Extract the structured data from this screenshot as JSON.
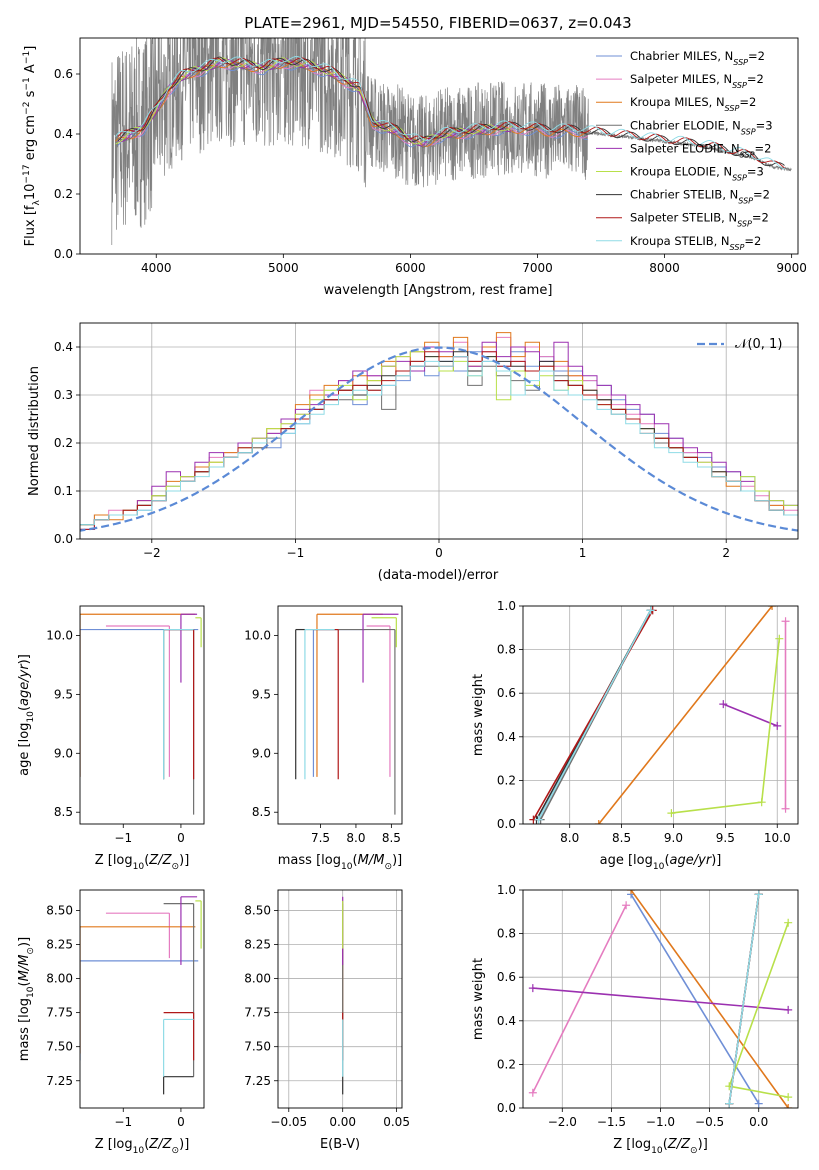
{
  "title": "PLATE=2961, MJD=54550, FIBERID=0637, z=0.043",
  "colors": {
    "Chabrier MILES": "#6f8fd6",
    "Salpeter MILES": "#e57cc0",
    "Kroupa MILES": "#e0781c",
    "Chabrier ELODIE": "#707070",
    "Salpeter ELODIE": "#9b30b0",
    "Kroupa ELODIE": "#b8e04a",
    "Chabrier STELIB": "#333333",
    "Salpeter STELIB": "#b01818",
    "Kroupa STELIB": "#8fdbe6",
    "data": "#808080",
    "normal": "#5b8ad6"
  },
  "chart_data": [
    {
      "type": "line",
      "name": "spectrum",
      "title": "PLATE=2961, MJD=54550, FIBERID=0637, z=0.043",
      "xlabel": "wavelength [Angstrom, rest frame]",
      "ylabel": "Flux [f_λ 10^-17 erg cm^-2 s^-1 A^-1]",
      "xlim": [
        3400,
        9050
      ],
      "ylim": [
        0,
        0.72
      ],
      "xticks": [
        4000,
        5000,
        6000,
        7000,
        8000,
        9000
      ],
      "yticks": [
        0.0,
        0.2,
        0.4,
        0.6
      ],
      "legend": "upper-right",
      "legend_entries": [
        {
          "model": "Chabrier MILES",
          "label": "Chabrier MILES, N",
          "sub": "SSP",
          "n": "=2"
        },
        {
          "model": "Salpeter MILES",
          "label": "Salpeter MILES, N",
          "sub": "SSP",
          "n": "=2"
        },
        {
          "model": "Kroupa MILES",
          "label": "Kroupa MILES, N",
          "sub": "SSP",
          "n": "=2"
        },
        {
          "model": "Chabrier ELODIE",
          "label": "Chabrier ELODIE, N",
          "sub": "SSP",
          "n": "=3"
        },
        {
          "model": "Salpeter ELODIE",
          "label": "Salpeter ELODIE, N",
          "sub": "SSP",
          "n": "=2"
        },
        {
          "model": "Kroupa ELODIE",
          "label": "Kroupa ELODIE, N",
          "sub": "SSP",
          "n": "=3"
        },
        {
          "model": "Chabrier STELIB",
          "label": "Chabrier STELIB, N",
          "sub": "SSP",
          "n": "=2"
        },
        {
          "model": "Salpeter STELIB",
          "label": "Salpeter STELIB, N",
          "sub": "SSP",
          "n": "=2"
        },
        {
          "model": "Kroupa STELIB",
          "label": "Kroupa STELIB, N",
          "sub": "SSP",
          "n": "=2"
        }
      ],
      "data_range": [
        3650,
        9000
      ],
      "continuum": [
        [
          3650,
          0.36
        ],
        [
          3700,
          0.38
        ],
        [
          3800,
          0.4
        ],
        [
          3900,
          0.42
        ],
        [
          4000,
          0.48
        ],
        [
          4100,
          0.55
        ],
        [
          4200,
          0.59
        ],
        [
          4300,
          0.61
        ],
        [
          4400,
          0.62
        ],
        [
          4500,
          0.64
        ],
        [
          4700,
          0.63
        ],
        [
          4850,
          0.62
        ],
        [
          5000,
          0.64
        ],
        [
          5200,
          0.63
        ],
        [
          5400,
          0.6
        ],
        [
          5600,
          0.55
        ],
        [
          5700,
          0.44
        ],
        [
          5800,
          0.42
        ],
        [
          5900,
          0.41
        ],
        [
          6000,
          0.38
        ],
        [
          6100,
          0.37
        ],
        [
          6200,
          0.39
        ],
        [
          6300,
          0.4
        ],
        [
          6500,
          0.41
        ],
        [
          6700,
          0.42
        ],
        [
          6900,
          0.42
        ],
        [
          7100,
          0.41
        ],
        [
          7300,
          0.41
        ],
        [
          7500,
          0.4
        ],
        [
          7700,
          0.39
        ],
        [
          7900,
          0.38
        ],
        [
          8100,
          0.37
        ],
        [
          8300,
          0.36
        ],
        [
          8500,
          0.34
        ],
        [
          8700,
          0.32
        ],
        [
          8850,
          0.29
        ],
        [
          9000,
          0.28
        ]
      ],
      "model_ends": {
        "Chabrier MILES": 7400,
        "Salpeter MILES": 7400,
        "Kroupa MILES": 7400,
        "Chabrier ELODIE": 6800,
        "Salpeter ELODIE": 6800,
        "Kroupa ELODIE": 6800,
        "Chabrier STELIB": 8950,
        "Salpeter STELIB": 8950,
        "Kroupa STELIB": 8950
      }
    },
    {
      "type": "histogram",
      "name": "residuals",
      "xlabel": "(data-model)/error",
      "ylabel": "Normed distribution",
      "xlim": [
        -2.5,
        2.5
      ],
      "ylim": [
        0,
        0.45
      ],
      "xticks": [
        -2,
        -1,
        0,
        1,
        2
      ],
      "yticks": [
        0.0,
        0.1,
        0.2,
        0.3,
        0.4
      ],
      "legend": "upper-right",
      "legend_label": "𝒩(0, 1)",
      "bin_width": 0.1,
      "grid": true
    },
    {
      "type": "errorbar",
      "name": "age-vs-Z",
      "xlabel": "Z [log10(Z/Z⊙)]",
      "ylabel": "age [log10(age/yr)]",
      "xlim": [
        -1.75,
        0.4
      ],
      "ylim": [
        8.4,
        10.25
      ],
      "xticks": [
        -1,
        0
      ],
      "yticks": [
        8.5,
        9.0,
        9.5,
        10.0
      ]
    },
    {
      "type": "errorbar",
      "name": "age-vs-mass",
      "xlabel": "mass [log10(M/M⊙)]",
      "ylabel": "",
      "xlim": [
        6.9,
        8.65
      ],
      "ylim": [
        8.4,
        10.25
      ],
      "xticks": [
        7.5,
        8.0,
        8.5
      ],
      "yticks": [
        8.5,
        9.0,
        9.5,
        10.0
      ]
    },
    {
      "type": "line",
      "name": "mass-weight-vs-age",
      "xlabel": "age [log10(age/yr)]",
      "ylabel": "mass weight",
      "xlim": [
        7.55,
        10.2
      ],
      "ylim": [
        0,
        1
      ],
      "xticks": [
        8.0,
        8.5,
        9.0,
        9.5,
        10.0
      ],
      "yticks": [
        0.0,
        0.2,
        0.4,
        0.6,
        0.8,
        1.0
      ],
      "grid": true
    },
    {
      "type": "errorbar",
      "name": "mass-vs-Z",
      "xlabel": "Z [log10(Z/Z⊙)]",
      "ylabel": "mass [log10(M/M⊙)]",
      "xlim": [
        -1.75,
        0.4
      ],
      "ylim": [
        7.05,
        8.65
      ],
      "xticks": [
        -1,
        0
      ],
      "yticks": [
        7.25,
        7.5,
        7.75,
        8.0,
        8.25,
        8.5
      ]
    },
    {
      "type": "errorbar",
      "name": "mass-vs-EBV",
      "xlabel": "E(B-V)",
      "ylabel": "",
      "xlim": [
        -0.06,
        0.055
      ],
      "ylim": [
        7.05,
        8.65
      ],
      "xticks": [
        -0.05,
        0.0,
        0.05
      ],
      "yticks": [
        7.25,
        7.5,
        7.75,
        8.0,
        8.25,
        8.5
      ],
      "grid": true
    },
    {
      "type": "line",
      "name": "mass-weight-vs-Z",
      "xlabel": "Z [log10(Z/Z⊙)]",
      "ylabel": "mass weight",
      "xlim": [
        -2.4,
        0.4
      ],
      "ylim": [
        0,
        1
      ],
      "xticks": [
        -2.0,
        -1.5,
        -1.0,
        -0.5,
        0.0
      ],
      "yticks": [
        0.0,
        0.2,
        0.4,
        0.6,
        0.8,
        1.0
      ],
      "grid": true
    }
  ],
  "ssp": {
    "Chabrier MILES": {
      "age": [
        7.7,
        8.78
      ],
      "Z": [
        0.0,
        -1.3
      ],
      "mass": [
        7.25,
        8.1
      ],
      "weight": [
        0.02,
        0.98
      ],
      "age_err": [
        8.8,
        10.05
      ],
      "Z_err": [
        -1.75,
        0.3
      ],
      "mass_err": [
        7.4,
        8.13
      ]
    },
    "Salpeter MILES": {
      "age": [
        10.08,
        10.08
      ],
      "Z": [
        -2.3,
        -1.35
      ],
      "mass": [
        7.3,
        8.48
      ],
      "weight": [
        0.07,
        0.93
      ],
      "age_err": [
        8.8,
        10.08
      ],
      "Z_err": [
        -1.3,
        -0.2
      ],
      "mass_err": [
        8.15,
        8.48
      ]
    },
    "Kroupa MILES": {
      "age": [
        8.28,
        9.95
      ],
      "Z": [
        0.3,
        -1.3
      ],
      "mass": [
        7.45,
        8.38
      ],
      "weight": [
        0.0,
        1.0
      ],
      "age_err": [
        8.8,
        10.18
      ],
      "Z_err": [
        -1.75,
        0.25
      ],
      "mass_err": [
        7.45,
        8.38
      ]
    },
    "Chabrier ELODIE": {
      "age": [
        7.72,
        8.78
      ],
      "Z": [
        -0.3,
        0.0
      ],
      "mass": [
        7.28,
        8.55
      ],
      "weight": [
        0.02,
        0.98
      ],
      "age_err": [
        8.48,
        10.05
      ],
      "Z_err": [
        -0.3,
        0.22
      ],
      "mass_err": [
        7.28,
        8.55
      ]
    },
    "Salpeter ELODIE": {
      "age": [
        9.48,
        10.0
      ],
      "Z": [
        -2.3,
        0.3
      ],
      "mass": [
        7.3,
        8.25
      ],
      "weight": [
        0.55,
        0.45
      ],
      "age_err": [
        9.6,
        10.18
      ],
      "Z_err": [
        0.0,
        0.28
      ],
      "mass_err": [
        8.1,
        8.6
      ]
    },
    "Kroupa ELODIE": {
      "age": [
        8.98,
        9.85,
        10.02
      ],
      "Z": [
        0.3,
        -0.3,
        0.3
      ],
      "mass": [
        7.4,
        7.7,
        8.5
      ],
      "weight": [
        0.05,
        0.1,
        0.85
      ],
      "age_err": [
        9.9,
        10.15
      ],
      "Z_err": [
        0.25,
        0.35
      ],
      "mass_err": [
        8.22,
        8.57
      ]
    },
    "Chabrier STELIB": {
      "age": [
        7.68,
        8.78
      ],
      "Z": [
        -0.3,
        0.0
      ],
      "mass": [
        7.15,
        8.5
      ],
      "weight": [
        0.02,
        0.98
      ],
      "age_err": [
        8.78,
        10.05
      ],
      "Z_err": [
        -0.3,
        0.22
      ],
      "mass_err": [
        7.15,
        7.28
      ]
    },
    "Salpeter STELIB": {
      "age": [
        7.65,
        8.8
      ],
      "Z": [
        -0.3,
        0.0
      ],
      "mass": [
        7.4,
        8.55
      ],
      "weight": [
        0.02,
        0.98
      ],
      "age_err": [
        8.78,
        10.05
      ],
      "Z_err": [
        -0.3,
        0.22
      ],
      "mass_err": [
        7.4,
        7.75
      ]
    },
    "Kroupa STELIB": {
      "age": [
        7.7,
        8.78
      ],
      "Z": [
        -0.3,
        0.0
      ],
      "mass": [
        7.28,
        8.5
      ],
      "weight": [
        0.02,
        0.98
      ],
      "age_err": [
        8.78,
        10.05
      ],
      "Z_err": [
        -0.3,
        0.22
      ],
      "mass_err": [
        7.28,
        7.7
      ]
    }
  },
  "hist_heights": {
    "Chabrier MILES": [
      0.02,
      0.05,
      0.05,
      0.05,
      0.06,
      0.08,
      0.11,
      0.12,
      0.14,
      0.15,
      0.17,
      0.18,
      0.2,
      0.19,
      0.22,
      0.24,
      0.27,
      0.29,
      0.31,
      0.28,
      0.3,
      0.32,
      0.33,
      0.35,
      0.34,
      0.37,
      0.35,
      0.39,
      0.37,
      0.36,
      0.39,
      0.36,
      0.38,
      0.35,
      0.35,
      0.33,
      0.32,
      0.29,
      0.27,
      0.26,
      0.22,
      0.21,
      0.18,
      0.17,
      0.15,
      0.14,
      0.13,
      0.1,
      0.08,
      0.07
    ],
    "Salpeter MILES": [
      0.03,
      0.04,
      0.06,
      0.05,
      0.07,
      0.08,
      0.1,
      0.13,
      0.15,
      0.17,
      0.18,
      0.19,
      0.21,
      0.22,
      0.24,
      0.26,
      0.31,
      0.29,
      0.33,
      0.32,
      0.34,
      0.36,
      0.38,
      0.36,
      0.4,
      0.38,
      0.41,
      0.37,
      0.39,
      0.42,
      0.37,
      0.4,
      0.38,
      0.36,
      0.34,
      0.33,
      0.3,
      0.28,
      0.26,
      0.24,
      0.21,
      0.2,
      0.18,
      0.16,
      0.13,
      0.12,
      0.11,
      0.09,
      0.07,
      0.06
    ],
    "Kroupa MILES": [
      0.03,
      0.05,
      0.04,
      0.06,
      0.08,
      0.09,
      0.12,
      0.13,
      0.15,
      0.16,
      0.18,
      0.2,
      0.19,
      0.23,
      0.25,
      0.28,
      0.3,
      0.32,
      0.31,
      0.34,
      0.33,
      0.37,
      0.35,
      0.39,
      0.41,
      0.38,
      0.42,
      0.36,
      0.4,
      0.43,
      0.38,
      0.41,
      0.35,
      0.37,
      0.34,
      0.31,
      0.29,
      0.27,
      0.25,
      0.23,
      0.2,
      0.19,
      0.17,
      0.15,
      0.14,
      0.11,
      0.1,
      0.08,
      0.07,
      0.05
    ],
    "Chabrier ELODIE": [
      0.03,
      0.04,
      0.05,
      0.05,
      0.07,
      0.09,
      0.1,
      0.12,
      0.14,
      0.15,
      0.17,
      0.18,
      0.19,
      0.21,
      0.23,
      0.25,
      0.27,
      0.3,
      0.29,
      0.32,
      0.31,
      0.27,
      0.34,
      0.37,
      0.36,
      0.35,
      0.38,
      0.32,
      0.36,
      0.34,
      0.33,
      0.31,
      0.36,
      0.34,
      0.32,
      0.3,
      0.29,
      0.26,
      0.25,
      0.23,
      0.2,
      0.19,
      0.17,
      0.15,
      0.13,
      0.12,
      0.1,
      0.08,
      0.06,
      0.05
    ],
    "Salpeter ELODIE": [
      0.02,
      0.04,
      0.05,
      0.06,
      0.08,
      0.11,
      0.14,
      0.13,
      0.16,
      0.18,
      0.17,
      0.2,
      0.21,
      0.22,
      0.25,
      0.27,
      0.28,
      0.3,
      0.33,
      0.35,
      0.34,
      0.36,
      0.37,
      0.35,
      0.4,
      0.39,
      0.38,
      0.36,
      0.41,
      0.38,
      0.4,
      0.39,
      0.37,
      0.41,
      0.36,
      0.34,
      0.32,
      0.3,
      0.28,
      0.26,
      0.24,
      0.21,
      0.19,
      0.18,
      0.16,
      0.14,
      0.12,
      0.1,
      0.08,
      0.07
    ],
    "Kroupa ELODIE": [
      0.03,
      0.04,
      0.05,
      0.06,
      0.07,
      0.09,
      0.11,
      0.13,
      0.14,
      0.16,
      0.17,
      0.19,
      0.21,
      0.23,
      0.24,
      0.26,
      0.29,
      0.31,
      0.32,
      0.29,
      0.33,
      0.36,
      0.38,
      0.39,
      0.38,
      0.35,
      0.37,
      0.34,
      0.38,
      0.29,
      0.35,
      0.32,
      0.34,
      0.31,
      0.33,
      0.3,
      0.28,
      0.27,
      0.25,
      0.23,
      0.21,
      0.19,
      0.17,
      0.16,
      0.13,
      0.12,
      0.13,
      0.1,
      0.08,
      0.07
    ],
    "Chabrier STELIB": [
      0.03,
      0.04,
      0.05,
      0.05,
      0.07,
      0.08,
      0.1,
      0.12,
      0.14,
      0.15,
      0.17,
      0.18,
      0.2,
      0.21,
      0.23,
      0.25,
      0.27,
      0.29,
      0.31,
      0.3,
      0.32,
      0.34,
      0.35,
      0.36,
      0.38,
      0.37,
      0.39,
      0.35,
      0.38,
      0.37,
      0.36,
      0.35,
      0.37,
      0.33,
      0.32,
      0.31,
      0.29,
      0.27,
      0.25,
      0.23,
      0.21,
      0.19,
      0.17,
      0.15,
      0.14,
      0.12,
      0.1,
      0.08,
      0.06,
      0.05
    ],
    "Salpeter STELIB": [
      0.02,
      0.04,
      0.05,
      0.06,
      0.07,
      0.08,
      0.1,
      0.12,
      0.14,
      0.15,
      0.17,
      0.19,
      0.2,
      0.21,
      0.23,
      0.25,
      0.27,
      0.29,
      0.31,
      0.32,
      0.31,
      0.33,
      0.35,
      0.37,
      0.39,
      0.36,
      0.38,
      0.37,
      0.39,
      0.36,
      0.37,
      0.35,
      0.36,
      0.33,
      0.32,
      0.3,
      0.28,
      0.27,
      0.25,
      0.22,
      0.21,
      0.19,
      0.17,
      0.15,
      0.13,
      0.12,
      0.1,
      0.08,
      0.06,
      0.05
    ],
    "Kroupa STELIB": [
      0.03,
      0.04,
      0.05,
      0.05,
      0.06,
      0.08,
      0.1,
      0.12,
      0.13,
      0.15,
      0.17,
      0.18,
      0.2,
      0.21,
      0.22,
      0.24,
      0.26,
      0.28,
      0.3,
      0.31,
      0.3,
      0.32,
      0.34,
      0.36,
      0.37,
      0.36,
      0.38,
      0.34,
      0.37,
      0.35,
      0.3,
      0.33,
      0.35,
      0.31,
      0.3,
      0.29,
      0.27,
      0.26,
      0.24,
      0.22,
      0.19,
      0.18,
      0.16,
      0.15,
      0.13,
      0.12,
      0.1,
      0.08,
      0.06,
      0.05
    ]
  }
}
